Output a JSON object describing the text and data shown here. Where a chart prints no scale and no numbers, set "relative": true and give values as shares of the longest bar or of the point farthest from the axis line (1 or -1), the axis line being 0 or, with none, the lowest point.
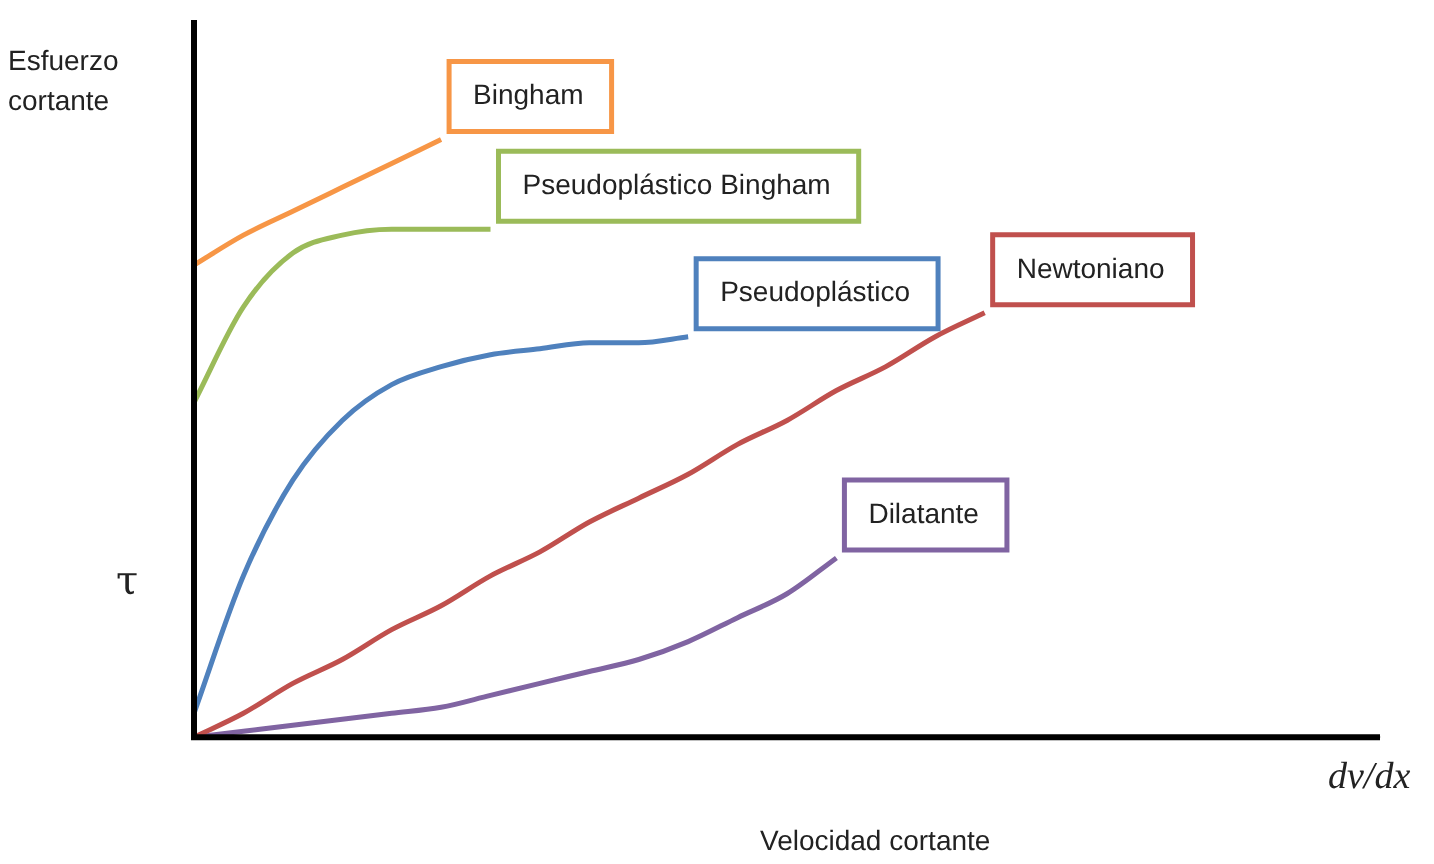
{
  "chart_data": {
    "type": "line",
    "relative": true,
    "xlabel": "Velocidad cortante",
    "ylabel": "Esfuerzo cortante",
    "annotations": [
      "τ",
      "dv/dx"
    ],
    "categories": [
      null,
      null,
      null,
      null,
      null,
      null,
      null,
      null,
      null,
      null,
      null,
      null,
      null,
      null,
      null,
      null,
      null,
      null,
      null,
      null,
      null,
      null,
      null,
      null,
      null
    ],
    "legend": false,
    "marker": "none",
    "line_style": "solid",
    "series": [
      {
        "name": "Bingham",
        "color": "#f79646",
        "values": [
          0.79,
          0.84,
          0.88,
          0.92,
          0.96,
          1.0,
          null,
          null,
          null,
          null,
          null,
          null,
          null,
          null,
          null,
          null,
          null,
          null,
          null,
          null,
          null,
          null,
          null,
          null,
          null
        ]
      },
      {
        "name": "Pseudoplástico Bingham",
        "color": "#9bbb59",
        "values": [
          0.56,
          0.72,
          0.81,
          0.84,
          0.85,
          0.85,
          0.85,
          null,
          null,
          null,
          null,
          null,
          null,
          null,
          null,
          null,
          null,
          null,
          null,
          null,
          null,
          null,
          null,
          null,
          null
        ]
      },
      {
        "name": "Pseudoplástico",
        "color": "#4f81bd",
        "values": [
          0.04,
          0.27,
          0.43,
          0.53,
          0.59,
          0.62,
          0.64,
          0.65,
          0.66,
          0.66,
          0.67,
          null,
          null,
          null,
          null,
          null,
          null,
          null,
          null,
          null,
          null,
          null,
          null,
          null,
          null
        ]
      },
      {
        "name": "Newtoniano",
        "color": "#c0504d",
        "values": [
          0,
          0.04,
          0.09,
          0.13,
          0.18,
          0.22,
          0.27,
          0.31,
          0.36,
          0.4,
          0.44,
          0.49,
          0.53,
          0.58,
          0.62,
          0.67,
          0.71,
          null,
          null,
          null,
          null,
          null,
          null,
          null,
          null
        ]
      },
      {
        "name": "Dilatante",
        "color": "#8064a2",
        "values": [
          0,
          0.01,
          0.02,
          0.03,
          0.04,
          0.05,
          0.07,
          0.09,
          0.11,
          0.13,
          0.16,
          0.2,
          0.24,
          0.3,
          null,
          null,
          null,
          null,
          null,
          null,
          null,
          null,
          null,
          null,
          null
        ]
      }
    ]
  }
}
